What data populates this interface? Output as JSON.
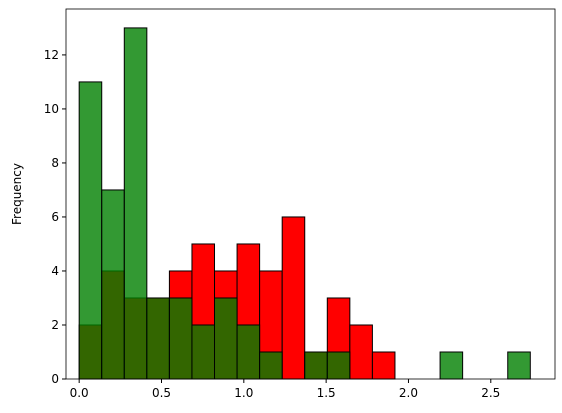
{
  "chart_data": {
    "type": "histogram",
    "y_label": "Frequency",
    "bins": [
      0,
      0.137,
      0.274,
      0.411,
      0.548,
      0.685,
      0.822,
      0.959,
      1.096,
      1.233,
      1.37,
      1.507,
      1.644,
      1.781,
      1.918,
      2.055,
      2.192,
      2.329,
      2.466,
      2.603,
      2.74
    ],
    "series": [
      {
        "color": "#ff0000",
        "opacity": 1,
        "values": [
          2,
          4,
          3,
          3,
          4,
          5,
          4,
          5,
          4,
          6,
          1,
          3,
          2,
          1,
          0,
          0,
          0,
          0,
          0,
          0
        ]
      },
      {
        "color": "#008000",
        "opacity": 0.8,
        "values": [
          11,
          7,
          13,
          3,
          3,
          2,
          3,
          2,
          1,
          0,
          1,
          1,
          0,
          0,
          0,
          0,
          1,
          0,
          0,
          1
        ]
      }
    ],
    "xlim": [
      -0.08,
      2.89
    ],
    "ylim": [
      0,
      13.7
    ],
    "xticks": [
      {
        "value": 0,
        "label": "0.0"
      },
      0.5,
      {
        "value": 1,
        "label": "1.0"
      },
      1.5,
      {
        "value": 2,
        "label": "2.0"
      },
      2.5
    ],
    "yticks": [
      0,
      2,
      4,
      6,
      8,
      10,
      12
    ]
  }
}
